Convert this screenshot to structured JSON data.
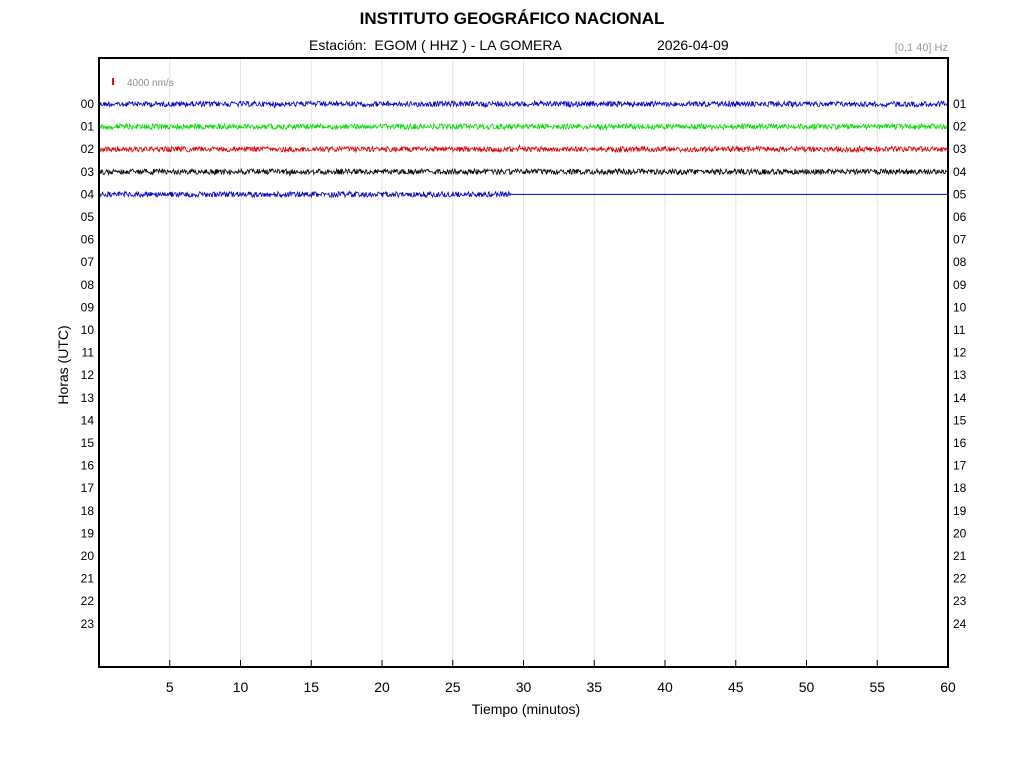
{
  "header": {
    "title": "INSTITUTO GEOGRÁFICO NACIONAL",
    "station_line": "Estación:  EGOM ( HHZ ) - LA GOMERA",
    "date": "2026-04-09",
    "filter": "[0.1 40] Hz"
  },
  "chart_data": {
    "type": "line",
    "title": "INSTITUTO GEOGRÁFICO NACIONAL",
    "subtitle": "Estación:  EGOM ( HHZ ) - LA GOMERA",
    "date": "2026-04-09",
    "filter": "[0.1 40] Hz",
    "xlabel": "Tiempo (minutos)",
    "ylabel": "Horas (UTC)",
    "xlim": [
      0,
      60
    ],
    "x_ticks": [
      5,
      10,
      15,
      20,
      25,
      30,
      35,
      40,
      45,
      50,
      55,
      60
    ],
    "left_labels": [
      "00",
      "01",
      "02",
      "03",
      "04",
      "05",
      "06",
      "07",
      "08",
      "09",
      "10",
      "11",
      "12",
      "13",
      "14",
      "15",
      "16",
      "17",
      "18",
      "19",
      "20",
      "21",
      "22",
      "23"
    ],
    "right_labels": [
      "01",
      "02",
      "03",
      "04",
      "05",
      "06",
      "07",
      "08",
      "09",
      "10",
      "11",
      "12",
      "13",
      "14",
      "15",
      "16",
      "17",
      "18",
      "19",
      "20",
      "21",
      "22",
      "23",
      "24"
    ],
    "scale_label": "4000 nm/s",
    "scale_color": "#ff0000",
    "grid": "vertical",
    "traces": [
      {
        "hour": "00",
        "color": "#0000cc",
        "end_minute": 60
      },
      {
        "hour": "01",
        "color": "#00dd00",
        "end_minute": 60
      },
      {
        "hour": "02",
        "color": "#dd0000",
        "end_minute": 60
      },
      {
        "hour": "03",
        "color": "#000000",
        "end_minute": 60
      },
      {
        "hour": "04",
        "color": "#0000cc",
        "end_minute": 29.1
      }
    ]
  }
}
